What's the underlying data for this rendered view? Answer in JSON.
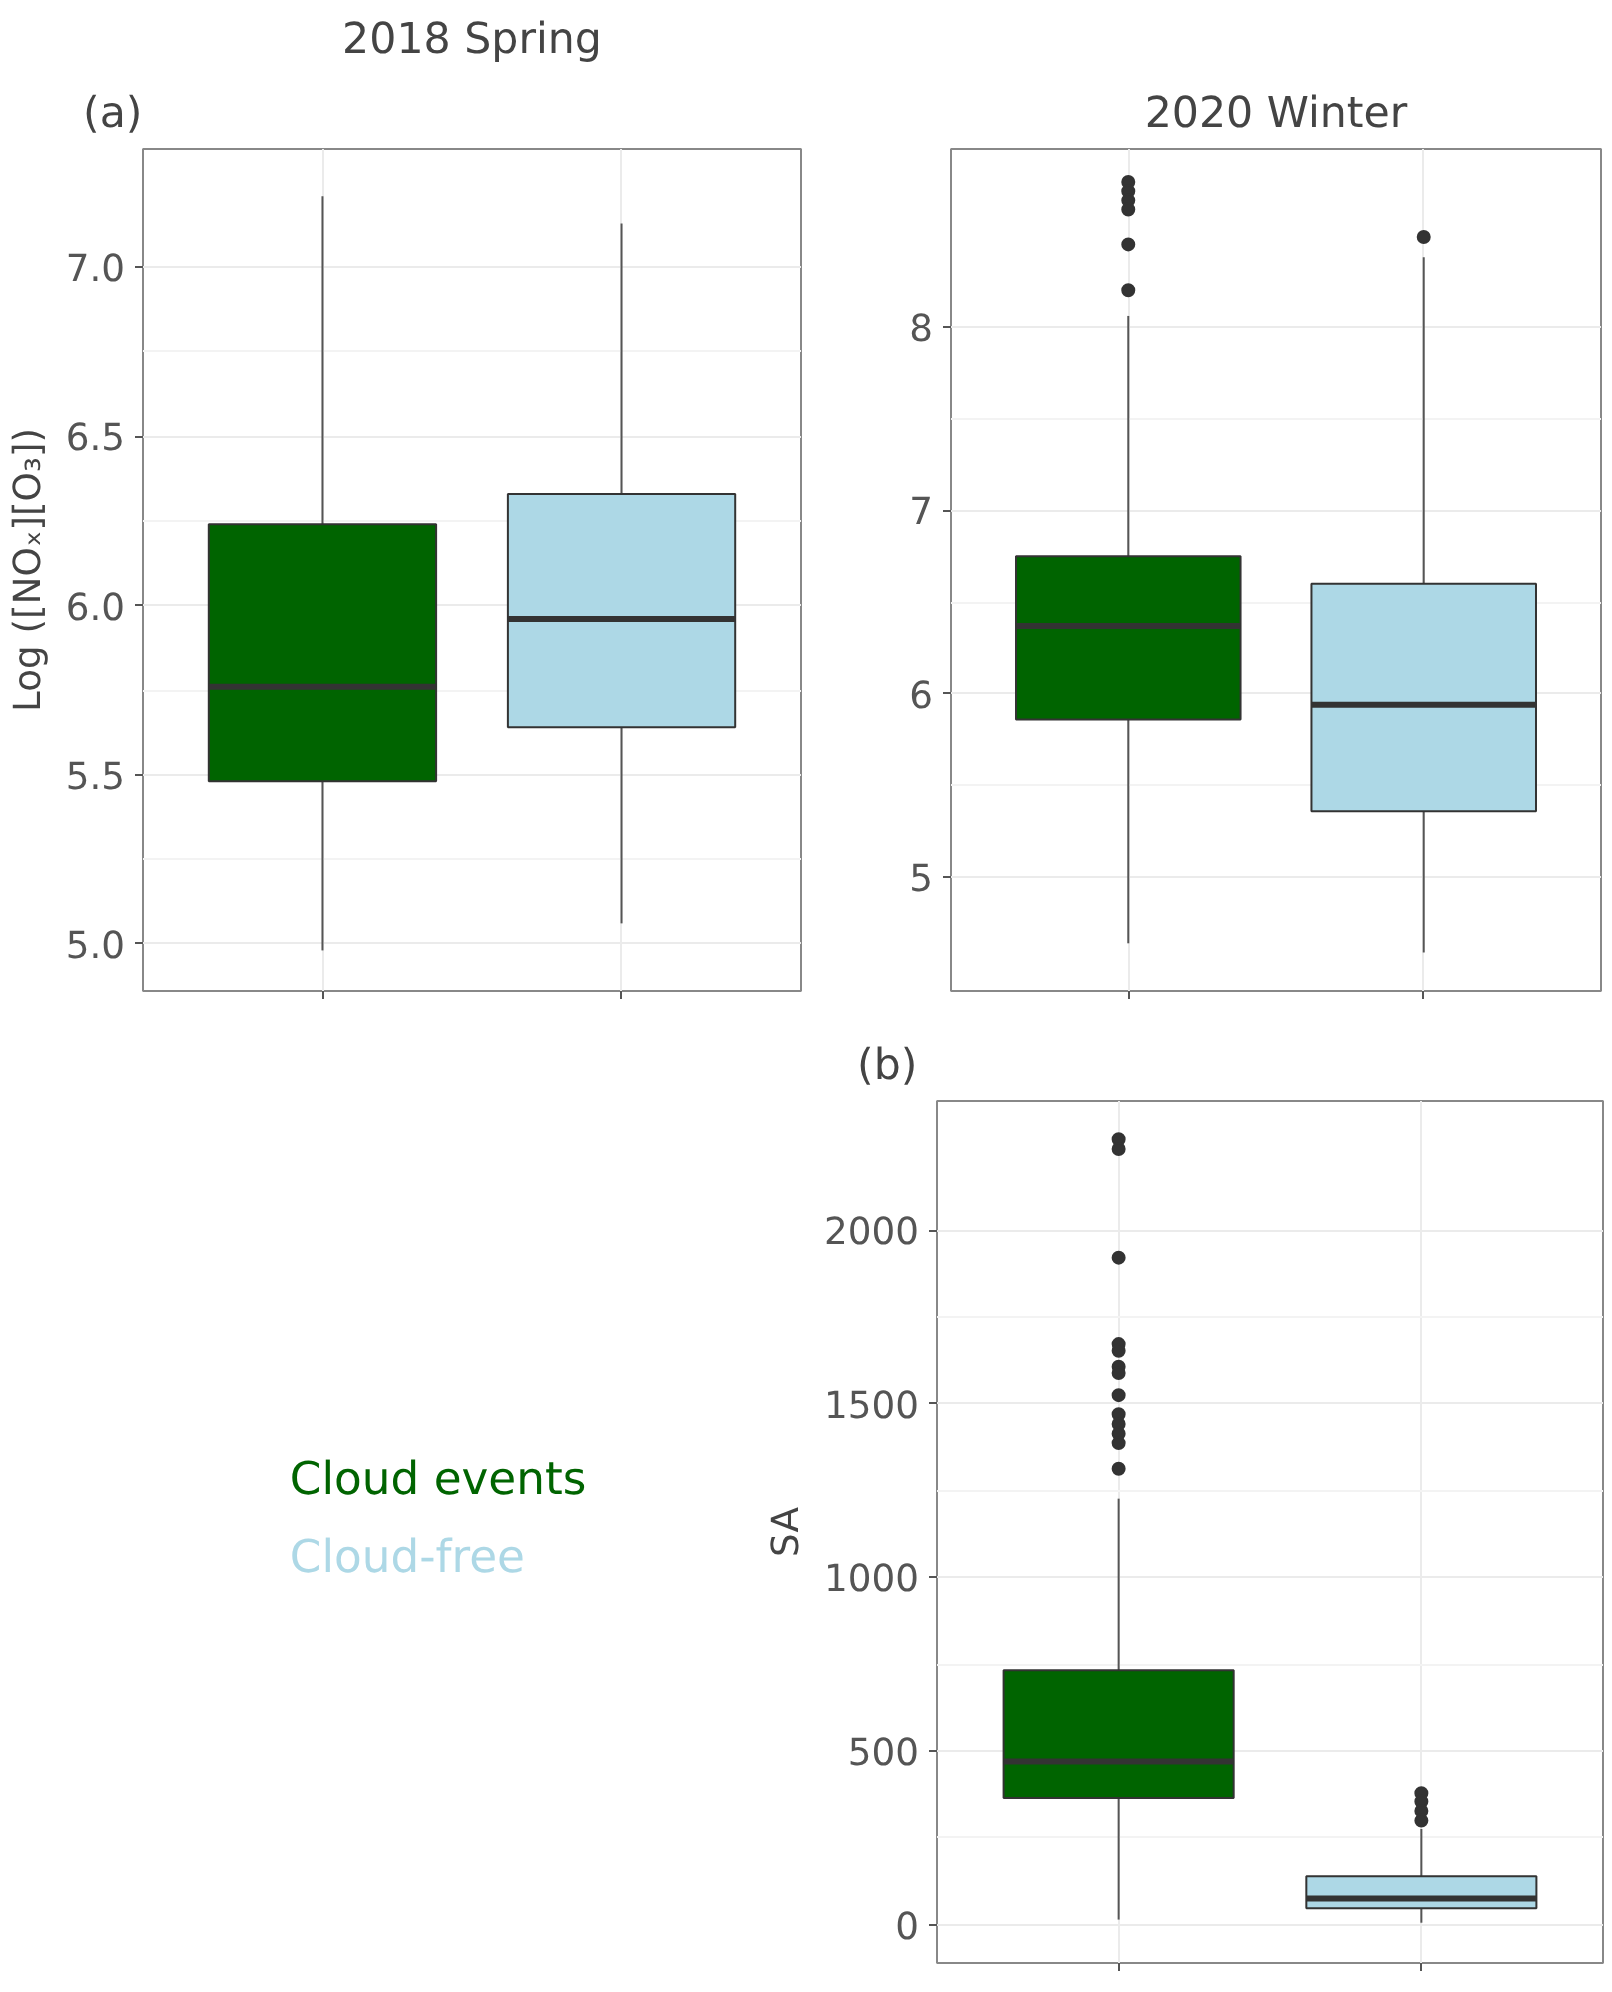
{
  "chart_data": [
    {
      "type": "box",
      "title": "2018 Spring",
      "ylabel": "Log ([NOₓ][O₃])",
      "annotations": [
        "(a)"
      ],
      "categories": [
        null,
        null
      ],
      "ylim": [
        4.86,
        7.35
      ],
      "yticks": [
        {
          "value": 5,
          "label": "5.0"
        },
        {
          "value": 5.5,
          "label": "5.5"
        },
        {
          "value": 6,
          "label": "6.0"
        },
        {
          "value": 6.5,
          "label": "6.5"
        },
        {
          "value": 7,
          "label": "7.0"
        }
      ],
      "grid": true,
      "tick_labels": "y",
      "series": [
        {
          "color": "#006400",
          "boxes": [
            {
              "low": 4.98,
              "q1": 5.48,
              "median": 5.76,
              "q3": 6.24,
              "high": 7.21
            },
            null
          ]
        },
        {
          "color": "#add8e6",
          "boxes": [
            null,
            {
              "low": 5.06,
              "q1": 5.64,
              "median": 5.96,
              "q3": 6.33,
              "high": 7.13
            }
          ]
        }
      ]
    },
    {
      "type": "box",
      "title": "2020 Winter",
      "categories": [
        null,
        null
      ],
      "ylim": [
        4.38,
        8.97
      ],
      "yticks": [
        5,
        6,
        7,
        8
      ],
      "grid": true,
      "tick_labels": "y",
      "series": [
        {
          "color": "#006400",
          "boxes": [
            {
              "low": 4.64,
              "q1": 5.86,
              "median": 6.37,
              "q3": 6.75,
              "high": 8.06,
              "outliers": [
                8.79,
                8.74,
                8.69,
                8.64,
                8.45,
                8.2
              ]
            },
            null
          ]
        },
        {
          "color": "#add8e6",
          "boxes": [
            null,
            {
              "low": 4.59,
              "q1": 5.36,
              "median": 5.94,
              "q3": 6.6,
              "high": 8.38,
              "outliers": [
                8.49
              ]
            }
          ]
        }
      ]
    },
    {
      "type": "box",
      "ylabel": "SA",
      "annotations": [
        "(b)"
      ],
      "categories": [
        null,
        null
      ],
      "ylim": [
        -110,
        2372
      ],
      "yticks": [
        0,
        500,
        1000,
        1500,
        2000
      ],
      "grid": true,
      "tick_labels": "y",
      "legend": "left",
      "series": [
        {
          "name": "Cloud events",
          "color": "#006400",
          "boxes": [
            {
              "low": 15,
              "q1": 365,
              "median": 470,
              "q3": 733,
              "high": 1227,
              "outliers": [
                2262,
                2234,
                1921,
                1672,
                1653,
                1607,
                1589,
                1525,
                1470,
                1442,
                1414,
                1387,
                1313
              ]
            },
            null
          ]
        },
        {
          "name": "Cloud-free",
          "color": "#add8e6",
          "boxes": [
            null,
            {
              "low": 6,
              "q1": 48,
              "median": 76,
              "q3": 140,
              "high": 276,
              "outliers": [
                379,
                355,
                328,
                300
              ]
            }
          ]
        }
      ]
    }
  ]
}
